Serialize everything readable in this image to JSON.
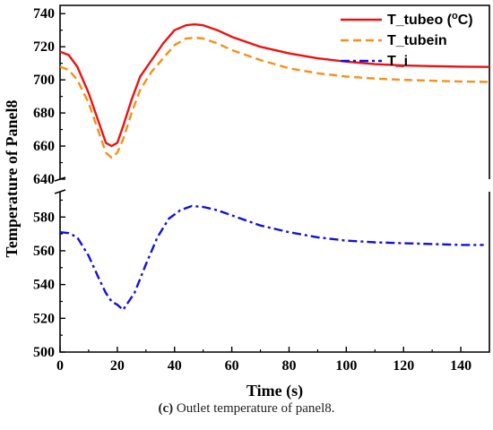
{
  "caption": {
    "tag": "(c)",
    "text": "Outlet temperature of panel8."
  },
  "chart_data": {
    "type": "line",
    "xlabel": "Time (s)",
    "ylabel": "Temperature of Panel8",
    "xlim": [
      0,
      150
    ],
    "x_ticks": [
      0,
      20,
      40,
      60,
      80,
      100,
      120,
      140
    ],
    "y_axis_break": [
      590,
      640
    ],
    "ylim_upper": [
      640,
      745
    ],
    "ylim_lower": [
      500,
      595
    ],
    "y_ticks_upper": [
      640,
      660,
      680,
      700,
      720,
      740
    ],
    "y_ticks_lower": [
      500,
      520,
      540,
      560,
      580
    ],
    "legend_position": "top-right",
    "series": [
      {
        "name": "T_tubeo (",
        "name_sup": "o",
        "name_suffix": "C)",
        "color": "#ee1111",
        "style": "solid",
        "x": [
          0,
          3,
          6,
          10,
          14,
          16,
          18,
          20,
          22,
          25,
          28,
          32,
          36,
          40,
          44,
          47,
          50,
          55,
          60,
          70,
          80,
          90,
          100,
          110,
          120,
          130,
          140,
          150
        ],
        "y": [
          717,
          715,
          708,
          692,
          672,
          662,
          660,
          662,
          672,
          688,
          702,
          712,
          722,
          730,
          733,
          733.5,
          733,
          730,
          726,
          720,
          716,
          713,
          711,
          709.5,
          708.7,
          708.3,
          708,
          707.8
        ]
      },
      {
        "name": "T_tubein",
        "color": "#f5901a",
        "style": "dashed",
        "x": [
          0,
          3,
          6,
          10,
          14,
          16,
          18,
          20,
          22,
          25,
          28,
          32,
          36,
          40,
          44,
          47,
          50,
          55,
          60,
          70,
          80,
          90,
          100,
          110,
          120,
          130,
          140,
          150
        ],
        "y": [
          708,
          706,
          700,
          686,
          666,
          656,
          653,
          656,
          664,
          680,
          694,
          705,
          713,
          721,
          725,
          725.5,
          725,
          722,
          718,
          712,
          707,
          704,
          702,
          700.8,
          700,
          699.5,
          699,
          698.8
        ]
      },
      {
        "name": "T_i",
        "color": "#1111dd",
        "style": "dashdot",
        "x": [
          0,
          3,
          6,
          10,
          14,
          16,
          18,
          20,
          22,
          26,
          30,
          34,
          38,
          42,
          46,
          50,
          55,
          60,
          70,
          80,
          90,
          100,
          110,
          120,
          130,
          140,
          148
        ],
        "y": [
          571,
          570.5,
          568,
          557,
          542,
          535,
          530,
          528,
          525,
          535,
          552,
          568,
          579,
          584,
          586.5,
          586,
          584,
          581,
          575,
          571,
          568,
          566,
          565,
          564.5,
          564,
          563.5,
          563.5
        ]
      }
    ]
  }
}
